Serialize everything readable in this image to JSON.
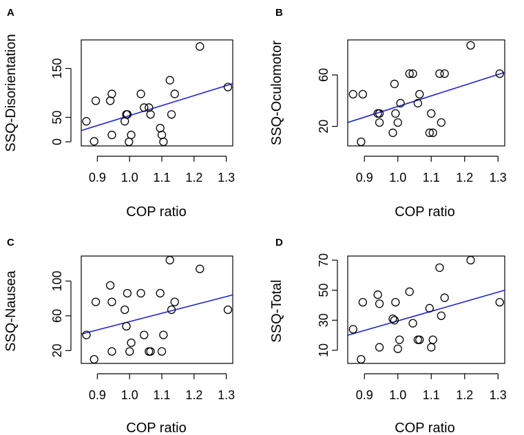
{
  "chart_data": [
    {
      "panel": "A",
      "type": "scatter",
      "xlabel": "COP ratio",
      "ylabel": "SSQ-Disorientation",
      "xlim": [
        0.85,
        1.32
      ],
      "ylim": [
        0,
        200
      ],
      "xticks": [
        0.9,
        1.0,
        1.1,
        1.2,
        1.3
      ],
      "xtick_labels": [
        "0.9",
        "1.0",
        "1.1",
        "1.2",
        "1.3"
      ],
      "yticks": [
        0,
        50,
        150
      ],
      "ytick_labels": [
        "0",
        "50",
        "150"
      ],
      "points": [
        {
          "x": 0.866,
          "y": 42
        },
        {
          "x": 0.89,
          "y": 1
        },
        {
          "x": 0.895,
          "y": 84
        },
        {
          "x": 0.94,
          "y": 84
        },
        {
          "x": 0.945,
          "y": 14
        },
        {
          "x": 0.945,
          "y": 98
        },
        {
          "x": 0.985,
          "y": 42
        },
        {
          "x": 0.99,
          "y": 56
        },
        {
          "x": 0.993,
          "y": 56
        },
        {
          "x": 0.998,
          "y": 0
        },
        {
          "x": 1.005,
          "y": 14
        },
        {
          "x": 1.035,
          "y": 98
        },
        {
          "x": 1.045,
          "y": 70
        },
        {
          "x": 1.06,
          "y": 70
        },
        {
          "x": 1.065,
          "y": 56
        },
        {
          "x": 1.095,
          "y": 28
        },
        {
          "x": 1.1,
          "y": 14
        },
        {
          "x": 1.105,
          "y": 0
        },
        {
          "x": 1.125,
          "y": 126
        },
        {
          "x": 1.13,
          "y": 56
        },
        {
          "x": 1.14,
          "y": 98
        },
        {
          "x": 1.218,
          "y": 195
        },
        {
          "x": 1.305,
          "y": 112
        }
      ],
      "fit_line": {
        "x": [
          0.85,
          1.32
        ],
        "y": [
          23,
          119
        ]
      }
    },
    {
      "panel": "B",
      "type": "scatter",
      "xlabel": "COP ratio",
      "ylabel": "SSQ-Oculomotor",
      "xlim": [
        0.85,
        1.32
      ],
      "ylim": [
        8,
        84
      ],
      "xticks": [
        0.9,
        1.0,
        1.1,
        1.2,
        1.3
      ],
      "xtick_labels": [
        "0.9",
        "1.0",
        "1.1",
        "1.2",
        "1.3"
      ],
      "yticks": [
        20,
        60
      ],
      "ytick_labels": [
        "20",
        "60"
      ],
      "points": [
        {
          "x": 0.866,
          "y": 45
        },
        {
          "x": 0.89,
          "y": 8
        },
        {
          "x": 0.895,
          "y": 45
        },
        {
          "x": 0.94,
          "y": 30
        },
        {
          "x": 0.945,
          "y": 23
        },
        {
          "x": 0.945,
          "y": 30
        },
        {
          "x": 0.985,
          "y": 15
        },
        {
          "x": 0.99,
          "y": 53
        },
        {
          "x": 0.993,
          "y": 30
        },
        {
          "x": 1.0,
          "y": 23
        },
        {
          "x": 1.008,
          "y": 38
        },
        {
          "x": 1.035,
          "y": 61
        },
        {
          "x": 1.045,
          "y": 61
        },
        {
          "x": 1.06,
          "y": 38
        },
        {
          "x": 1.065,
          "y": 45
        },
        {
          "x": 1.095,
          "y": 15
        },
        {
          "x": 1.1,
          "y": 30
        },
        {
          "x": 1.105,
          "y": 15
        },
        {
          "x": 1.125,
          "y": 61
        },
        {
          "x": 1.13,
          "y": 23
        },
        {
          "x": 1.14,
          "y": 61
        },
        {
          "x": 1.218,
          "y": 83
        },
        {
          "x": 1.305,
          "y": 61
        }
      ],
      "fit_line": {
        "x": [
          0.85,
          1.32
        ],
        "y": [
          23,
          62
        ]
      }
    },
    {
      "panel": "C",
      "type": "scatter",
      "xlabel": "COP ratio",
      "ylabel": "SSQ-Nausea",
      "xlim": [
        0.85,
        1.32
      ],
      "ylim": [
        10,
        124
      ],
      "xticks": [
        0.9,
        1.0,
        1.1,
        1.2,
        1.3
      ],
      "xtick_labels": [
        "0.9",
        "1.0",
        "1.1",
        "1.2",
        "1.3"
      ],
      "yticks": [
        20,
        60,
        100
      ],
      "ytick_labels": [
        "20",
        "60",
        "100"
      ],
      "points": [
        {
          "x": 0.866,
          "y": 38
        },
        {
          "x": 0.89,
          "y": 10
        },
        {
          "x": 0.895,
          "y": 76
        },
        {
          "x": 0.94,
          "y": 95
        },
        {
          "x": 0.945,
          "y": 19
        },
        {
          "x": 0.945,
          "y": 76
        },
        {
          "x": 0.985,
          "y": 67
        },
        {
          "x": 0.99,
          "y": 48
        },
        {
          "x": 0.993,
          "y": 86
        },
        {
          "x": 1.0,
          "y": 19
        },
        {
          "x": 1.005,
          "y": 29
        },
        {
          "x": 1.035,
          "y": 86
        },
        {
          "x": 1.045,
          "y": 38
        },
        {
          "x": 1.06,
          "y": 19
        },
        {
          "x": 1.065,
          "y": 19
        },
        {
          "x": 1.095,
          "y": 86
        },
        {
          "x": 1.1,
          "y": 19
        },
        {
          "x": 1.105,
          "y": 38
        },
        {
          "x": 1.125,
          "y": 124
        },
        {
          "x": 1.13,
          "y": 67
        },
        {
          "x": 1.14,
          "y": 76
        },
        {
          "x": 1.218,
          "y": 114
        },
        {
          "x": 1.305,
          "y": 67
        }
      ],
      "fit_line": {
        "x": [
          0.85,
          1.32
        ],
        "y": [
          39,
          84
        ]
      }
    },
    {
      "panel": "D",
      "type": "scatter",
      "xlabel": "COP ratio",
      "ylabel": "SSQ-Total",
      "xlim": [
        0.85,
        1.32
      ],
      "ylim": [
        4,
        70
      ],
      "xticks": [
        0.9,
        1.0,
        1.1,
        1.2,
        1.3
      ],
      "xtick_labels": [
        "0.9",
        "1.0",
        "1.1",
        "1.2",
        "1.3"
      ],
      "yticks": [
        10,
        30,
        50,
        70
      ],
      "ytick_labels": [
        "10",
        "30",
        "50",
        "70"
      ],
      "points": [
        {
          "x": 0.866,
          "y": 24
        },
        {
          "x": 0.89,
          "y": 4
        },
        {
          "x": 0.895,
          "y": 42
        },
        {
          "x": 0.94,
          "y": 47
        },
        {
          "x": 0.945,
          "y": 12
        },
        {
          "x": 0.945,
          "y": 41
        },
        {
          "x": 0.985,
          "y": 31
        },
        {
          "x": 0.99,
          "y": 30
        },
        {
          "x": 0.993,
          "y": 42
        },
        {
          "x": 1.0,
          "y": 11
        },
        {
          "x": 1.005,
          "y": 17
        },
        {
          "x": 1.035,
          "y": 49
        },
        {
          "x": 1.045,
          "y": 28
        },
        {
          "x": 1.06,
          "y": 17
        },
        {
          "x": 1.065,
          "y": 17
        },
        {
          "x": 1.095,
          "y": 38
        },
        {
          "x": 1.1,
          "y": 12
        },
        {
          "x": 1.105,
          "y": 17
        },
        {
          "x": 1.125,
          "y": 65
        },
        {
          "x": 1.13,
          "y": 33
        },
        {
          "x": 1.14,
          "y": 45
        },
        {
          "x": 1.218,
          "y": 70
        },
        {
          "x": 1.305,
          "y": 42
        }
      ],
      "fit_line": {
        "x": [
          0.85,
          1.32
        ],
        "y": [
          20,
          50
        ]
      }
    }
  ],
  "colors": {
    "fit_line": "#1a22d6",
    "marker_stroke": "#000000",
    "axis": "#000000",
    "background": "#ffffff"
  }
}
